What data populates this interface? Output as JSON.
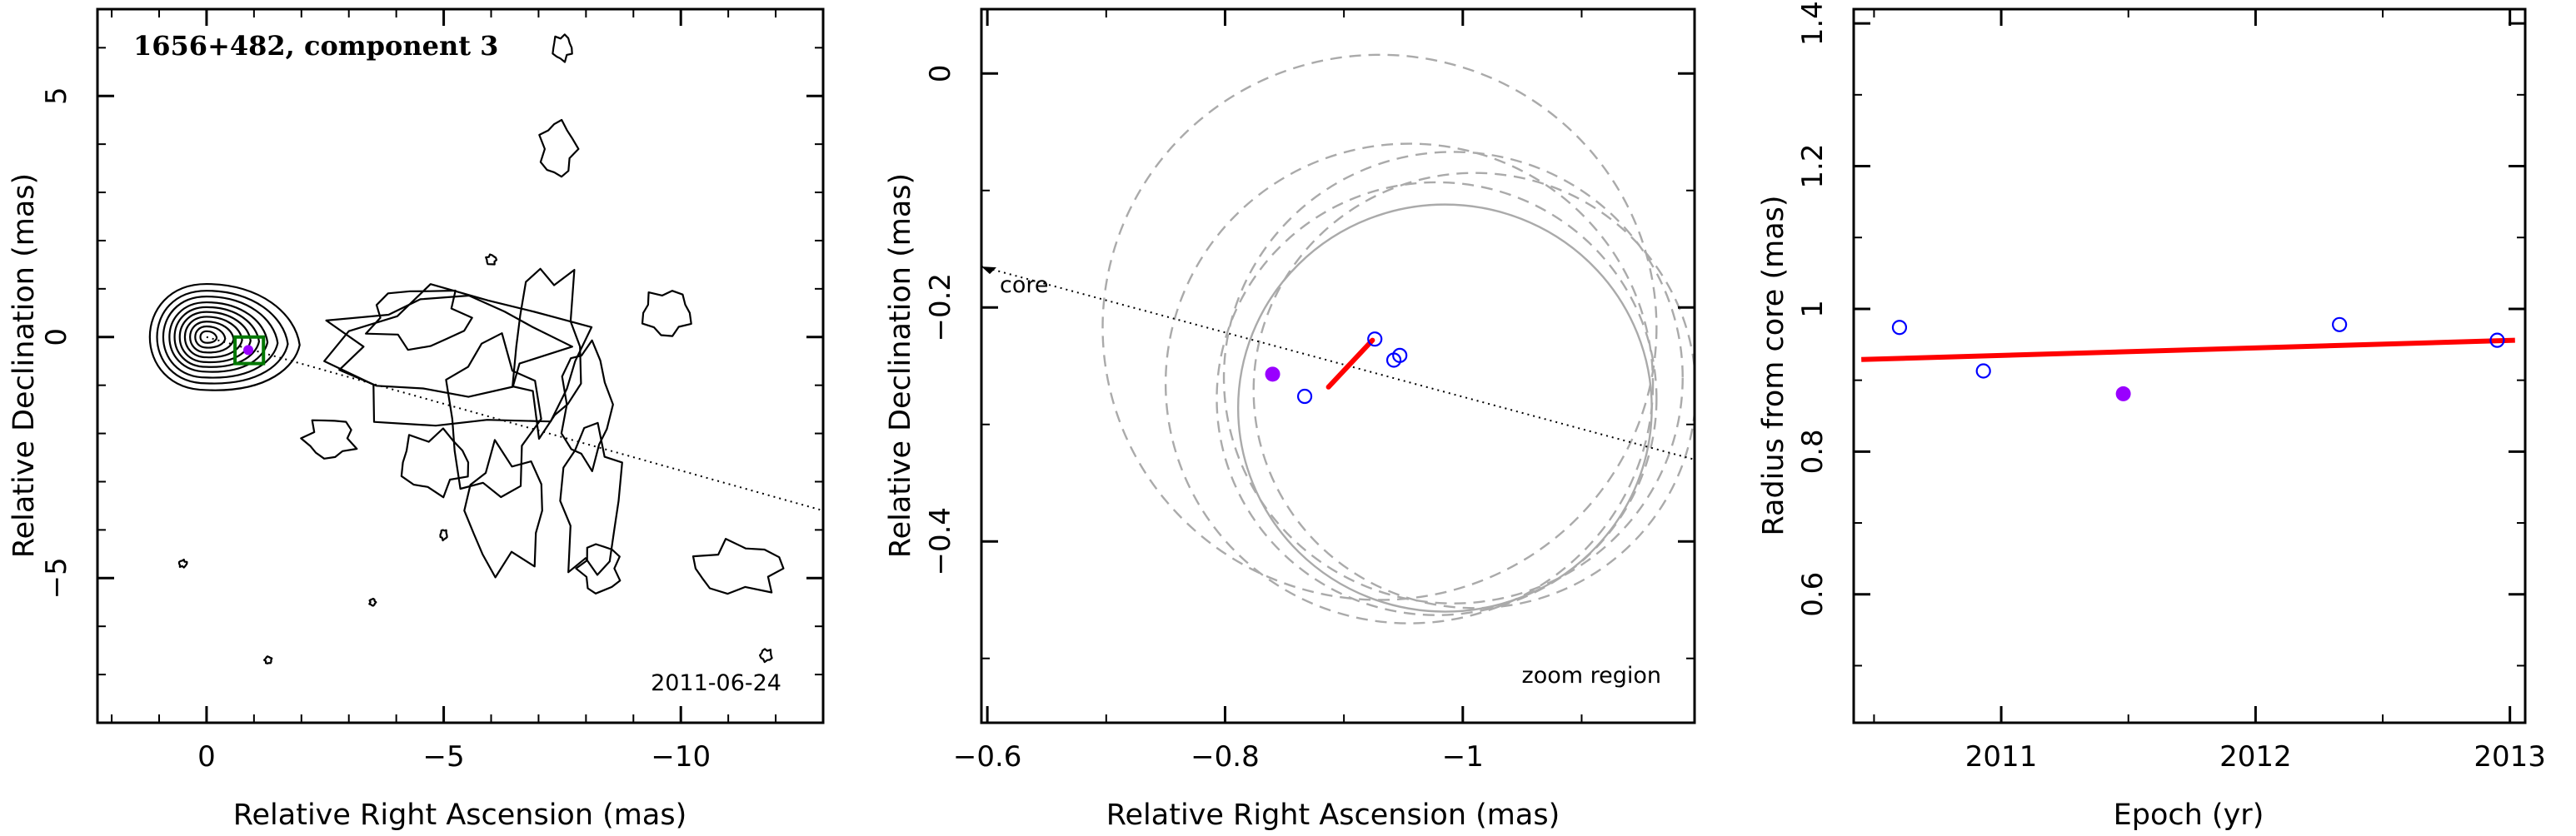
{
  "figure": {
    "panels": [
      {
        "title": "1656+482, component 3",
        "epoch_label": "2011-06-24",
        "xlabel": "Relative Right Ascension (mas)",
        "ylabel": "Relative Declination (mas)"
      },
      {
        "core_label": "core",
        "zoom_label": "zoom region",
        "xlabel": "Relative Right Ascension (mas)",
        "ylabel": "Relative Declination (mas)"
      },
      {
        "xlabel": "Epoch (yr)",
        "ylabel": "Radius from core (mas)"
      }
    ]
  },
  "chart_data": [
    {
      "type": "contour",
      "title": "1656+482, component 3",
      "xlabel": "Relative Right Ascension (mas)",
      "ylabel": "Relative Declination (mas)",
      "xlim": [
        2.3,
        -13.0
      ],
      "ylim": [
        -8.0,
        6.8
      ],
      "x_ticks": [
        0,
        -5,
        -10
      ],
      "x_tick_labels": [
        "0",
        "−5",
        "−10"
      ],
      "y_ticks": [
        -5,
        0,
        5
      ],
      "y_tick_labels": [
        "−5",
        "0",
        "5"
      ],
      "annotation": "2011-06-24",
      "core": {
        "x": 0.0,
        "y": 0.0
      },
      "core_contour_radii": [
        0.12,
        0.22,
        0.32,
        0.42,
        0.52,
        0.62,
        0.72,
        0.84,
        0.96,
        1.1
      ],
      "component": {
        "x": -0.88,
        "y": -0.27
      },
      "zoom_box": {
        "x": [
          -0.6,
          -1.2
        ],
        "y": [
          0.0,
          -0.55
        ]
      },
      "jet_direction_line": {
        "x": [
          0.0,
          -13.0
        ],
        "y": [
          0.0,
          -3.6
        ]
      },
      "extended_islands": [
        {
          "x": -4.5,
          "y": 0.4,
          "rx": 1.0,
          "ry": 0.6
        },
        {
          "x": -5.0,
          "y": -0.2,
          "rx": 2.2,
          "ry": 1.0
        },
        {
          "x": -5.4,
          "y": -0.5,
          "rx": 2.6,
          "ry": 1.4
        },
        {
          "x": -2.6,
          "y": -2.1,
          "rx": 0.5,
          "ry": 0.4
        },
        {
          "x": -4.8,
          "y": -2.6,
          "rx": 0.7,
          "ry": 0.6
        },
        {
          "x": -6.0,
          "y": -1.7,
          "rx": 0.9,
          "ry": 1.6
        },
        {
          "x": -6.3,
          "y": -3.6,
          "rx": 0.8,
          "ry": 1.2
        },
        {
          "x": -7.2,
          "y": -0.2,
          "rx": 0.7,
          "ry": 1.6
        },
        {
          "x": -8.0,
          "y": -1.4,
          "rx": 0.5,
          "ry": 1.2
        },
        {
          "x": -8.1,
          "y": -3.4,
          "rx": 0.6,
          "ry": 1.5
        },
        {
          "x": -8.3,
          "y": -4.8,
          "rx": 0.4,
          "ry": 0.5
        },
        {
          "x": -9.7,
          "y": 0.5,
          "rx": 0.5,
          "ry": 0.45
        },
        {
          "x": -7.4,
          "y": 3.9,
          "rx": 0.35,
          "ry": 0.55
        },
        {
          "x": -11.2,
          "y": -4.8,
          "rx": 0.9,
          "ry": 0.5
        },
        {
          "x": -11.8,
          "y": -6.6,
          "rx": 0.12,
          "ry": 0.12
        },
        {
          "x": -7.5,
          "y": 6.0,
          "rx": 0.2,
          "ry": 0.25
        },
        {
          "x": 0.5,
          "y": -4.7,
          "rx": 0.08,
          "ry": 0.07
        },
        {
          "x": -1.3,
          "y": -6.7,
          "rx": 0.07,
          "ry": 0.07
        },
        {
          "x": -5.0,
          "y": -4.1,
          "rx": 0.07,
          "ry": 0.1
        },
        {
          "x": -3.5,
          "y": -5.5,
          "rx": 0.06,
          "ry": 0.07
        },
        {
          "x": -6.0,
          "y": 1.6,
          "rx": 0.1,
          "ry": 0.1
        }
      ]
    },
    {
      "type": "scatter",
      "xlabel": "Relative Right Ascension (mas)",
      "ylabel": "Relative Declination (mas)",
      "xlim": [
        -0.595,
        -1.195
      ],
      "ylim": [
        -0.555,
        0.055
      ],
      "x_ticks": [
        -0.6,
        -0.8,
        -1.0
      ],
      "x_tick_labels": [
        "−0.6",
        "−0.8",
        "−1"
      ],
      "y_ticks": [
        0,
        -0.2,
        -0.4
      ],
      "y_tick_labels": [
        "0",
        "−0.2",
        "−0.4"
      ],
      "annotations": [
        "core",
        "zoom region"
      ],
      "points_open": [
        {
          "x": -0.867,
          "y": -0.276
        },
        {
          "x": -0.926,
          "y": -0.227
        },
        {
          "x": -0.942,
          "y": -0.245
        },
        {
          "x": -0.947,
          "y": -0.241
        }
      ],
      "points_filled": [
        {
          "x": -0.84,
          "y": -0.257
        }
      ],
      "fit_line": {
        "x": [
          -0.887,
          -0.924
        ],
        "y": [
          -0.268,
          -0.228
        ]
      },
      "core_direction_line": {
        "x": [
          -0.595,
          -1.195
        ],
        "y": [
          -0.165,
          -0.33
        ]
      },
      "dashed_circles": [
        {
          "cx": -0.93,
          "cy": -0.217,
          "r": 0.233
        },
        {
          "cx": -0.955,
          "cy": -0.265,
          "r": 0.205
        },
        {
          "cx": -0.992,
          "cy": -0.26,
          "r": 0.193
        },
        {
          "cx": -1.01,
          "cy": -0.271,
          "r": 0.186
        },
        {
          "cx": -0.978,
          "cy": -0.278,
          "r": 0.185
        }
      ],
      "solid_circle": {
        "cx": -0.985,
        "cy": -0.286,
        "r": 0.174
      }
    },
    {
      "type": "scatter",
      "xlabel": "Epoch (yr)",
      "ylabel": "Radius from core (mas)",
      "xlim": [
        2010.42,
        2013.06
      ],
      "ylim": [
        0.42,
        1.42
      ],
      "x_ticks": [
        2011,
        2012,
        2013
      ],
      "x_tick_labels": [
        "2011",
        "2012",
        "2013"
      ],
      "y_ticks": [
        0.6,
        0.8,
        1.0,
        1.2,
        1.4
      ],
      "y_tick_labels": [
        "0.6",
        "0.8",
        "1",
        "1.2",
        "1.4"
      ],
      "points_open": [
        {
          "x": 2010.6,
          "y": 0.974
        },
        {
          "x": 2010.93,
          "y": 0.913
        },
        {
          "x": 2012.33,
          "y": 0.978
        },
        {
          "x": 2012.95,
          "y": 0.956
        }
      ],
      "points_filled": [
        {
          "x": 2011.48,
          "y": 0.881
        }
      ],
      "fit_line": {
        "x": [
          2010.45,
          2013.02
        ],
        "y": [
          0.929,
          0.956
        ]
      }
    }
  ],
  "colors": {
    "open_marker": "#0000ff",
    "filled_marker": "#9900ff",
    "fit_line": "#ff0000",
    "circles": "#aaaaaa",
    "zoom_box": "#007700"
  }
}
